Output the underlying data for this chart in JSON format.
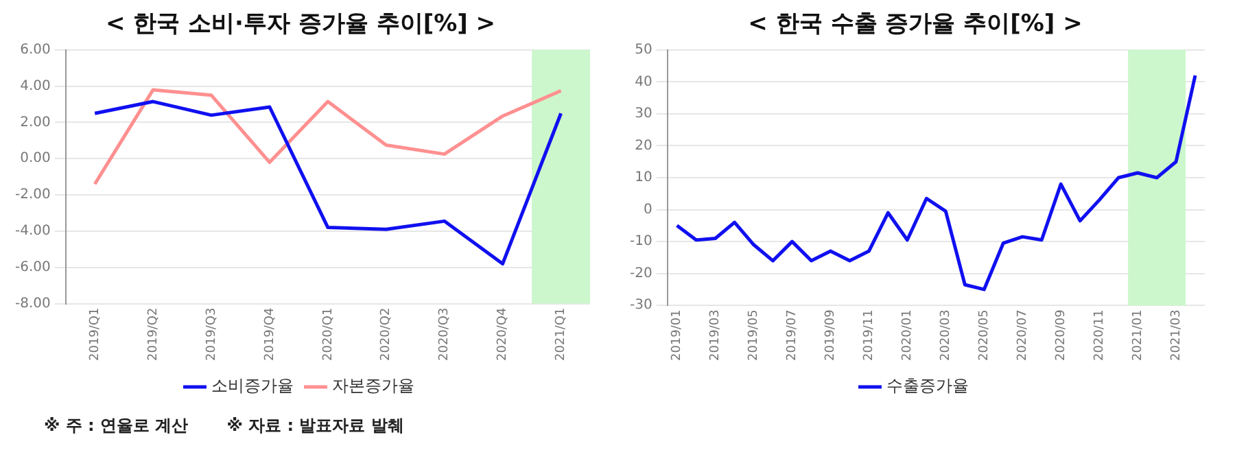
{
  "chart_data": [
    {
      "type": "line",
      "title": "< 한국 소비·투자 증가율 추이[%] >",
      "categories": [
        "2019/Q1",
        "2019/Q2",
        "2019/Q3",
        "2019/Q4",
        "2020/Q1",
        "2020/Q2",
        "2020/Q3",
        "2020/Q4",
        "2021/Q1"
      ],
      "series": [
        {
          "name": "소비증가율",
          "color": "#1010f0",
          "values": [
            2.5,
            3.15,
            2.4,
            2.85,
            -3.8,
            -3.9,
            -3.45,
            -5.8,
            2.5
          ]
        },
        {
          "name": "자본증가율",
          "color": "#ff9090",
          "values": [
            -1.4,
            3.8,
            3.5,
            -0.2,
            3.15,
            0.75,
            0.25,
            2.35,
            3.75
          ]
        }
      ],
      "ylim": [
        -8,
        6
      ],
      "yticks": [
        {
          "value": -8,
          "label": "-8.00"
        },
        {
          "value": -6,
          "label": "-6.00"
        },
        {
          "value": -4,
          "label": "-4.00"
        },
        {
          "value": -2,
          "label": "-2.00"
        },
        {
          "value": 0,
          "label": "0.00"
        },
        {
          "value": 2,
          "label": "2.00"
        },
        {
          "value": 4,
          "label": "4.00"
        },
        {
          "value": 6,
          "label": "6.00"
        }
      ],
      "bands": [
        {
          "axis": "x",
          "from": "2021/Q1",
          "to": "2021/Q1",
          "color": "#ccf7cc"
        }
      ],
      "grid": "y",
      "legend": "bottom",
      "marker": "none",
      "line_style": "solid",
      "annotations": [
        "※ 주 : 연율로 계산",
        "※ 자료 : 발표자료 발췌"
      ]
    },
    {
      "type": "line",
      "title": "< 한국 수출 증가율 추이[%] >",
      "categories": [
        "2019/01",
        null,
        "2019/03",
        null,
        "2019/05",
        null,
        "2019/07",
        null,
        "2019/09",
        null,
        "2019/11",
        null,
        "2020/01",
        null,
        "2020/03",
        null,
        "2020/05",
        null,
        "2020/07",
        null,
        "2020/09",
        null,
        "2020/11",
        null,
        "2021/01",
        null,
        "2021/03",
        null
      ],
      "series": [
        {
          "name": "수출증가율",
          "color": "#1010f0",
          "values": [
            -5,
            -9.5,
            -9,
            -4,
            -11,
            -16,
            -10,
            -16,
            -13,
            -16,
            -13,
            -1,
            -9.5,
            3.5,
            -0.5,
            -23.5,
            -25,
            -10.5,
            -8.5,
            -9.5,
            8,
            -3.5,
            3,
            10,
            11.5,
            10,
            15,
            42
          ]
        }
      ],
      "ylim": [
        -30,
        50
      ],
      "yticks": [
        -30,
        -20,
        -10,
        0,
        10,
        20,
        30,
        40,
        50
      ],
      "bands": [
        {
          "axis": "x",
          "from": "2021/01",
          "to": "2021/03",
          "color": "#ccf7cc"
        }
      ],
      "grid": "y",
      "legend": "bottom",
      "marker": "none",
      "line_style": "solid"
    }
  ]
}
